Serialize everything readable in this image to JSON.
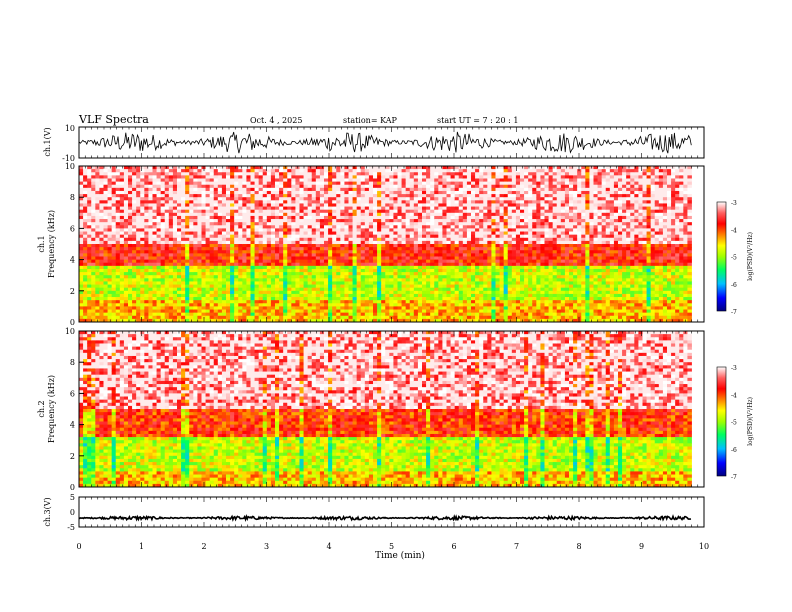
{
  "header": {
    "title": "VLF Spectra",
    "date": "Oct. 4 , 2025",
    "station": "station= KAP",
    "start": "start  UT =  7 : 20 : 1"
  },
  "colors": {
    "background": "#ffffff",
    "axis": "#000000",
    "colormap": [
      "#000080",
      "#0000ff",
      "#00c0ff",
      "#00ff60",
      "#80ff00",
      "#ffff00",
      "#ff8000",
      "#ff0000",
      "#ffffff"
    ]
  },
  "chart_data": [
    {
      "type": "line",
      "id": "ch1-voltage",
      "ylabel": "ch.1(V)",
      "ylim": [
        -10,
        10
      ],
      "yticks": [
        "10",
        "-10"
      ],
      "xlim": [
        0,
        10
      ],
      "description_series": {
        "name": "ch.1 waveform",
        "mean": 0,
        "amplitude": 7
      }
    },
    {
      "type": "heatmap",
      "id": "ch1-spectrogram",
      "ylabel": "ch.1\nFrequency  (kHz)",
      "ylim": [
        0,
        10
      ],
      "yticks": [
        "0",
        "2",
        "4",
        "6",
        "8",
        "10"
      ],
      "xlim": [
        0,
        10
      ],
      "data_end_min": 9.8,
      "bands_khz": [
        {
          "from": 0.0,
          "to": 1.5,
          "level": -4.4
        },
        {
          "from": 1.5,
          "to": 3.6,
          "level": -4.8
        },
        {
          "from": 3.6,
          "to": 5.0,
          "level": -3.8
        },
        {
          "from": 5.0,
          "to": 10.0,
          "level": -3.3
        }
      ],
      "colorbar": {
        "label": "log(PSD)(V²/Hz)",
        "ticks": [
          "-3",
          "-4",
          "-5",
          "-6",
          "-7"
        ],
        "range": [
          -7,
          -3
        ]
      }
    },
    {
      "type": "heatmap",
      "id": "ch2-spectrogram",
      "ylabel": "ch.2\nFrequency  (kHz)",
      "ylim": [
        0,
        10
      ],
      "yticks": [
        "0",
        "2",
        "4",
        "6",
        "8",
        "10"
      ],
      "xlim": [
        0,
        10
      ],
      "data_end_min": 9.8,
      "bands_khz": [
        {
          "from": 0.0,
          "to": 1.0,
          "level": -4.4
        },
        {
          "from": 1.0,
          "to": 3.2,
          "level": -4.8
        },
        {
          "from": 3.2,
          "to": 5.0,
          "level": -3.9
        },
        {
          "from": 5.0,
          "to": 10.0,
          "level": -3.3
        }
      ],
      "colorbar": {
        "label": "log(PSD)(V²/Hz)",
        "ticks": [
          "-3",
          "-4",
          "-5",
          "-6",
          "-7"
        ],
        "range": [
          -7,
          -3
        ]
      }
    },
    {
      "type": "line",
      "id": "ch3-voltage",
      "ylabel": "ch.3(V)",
      "ylim": [
        -5,
        5
      ],
      "yticks": [
        "5",
        "0",
        "-5"
      ],
      "xlim": [
        0,
        10
      ],
      "xticks": [
        "0",
        "1",
        "2",
        "3",
        "4",
        "5",
        "6",
        "7",
        "8",
        "9",
        "10"
      ],
      "xlabel": "Time  (min)",
      "description_series": {
        "name": "ch.3 waveform",
        "mean": -2,
        "amplitude": 0.6
      }
    }
  ]
}
